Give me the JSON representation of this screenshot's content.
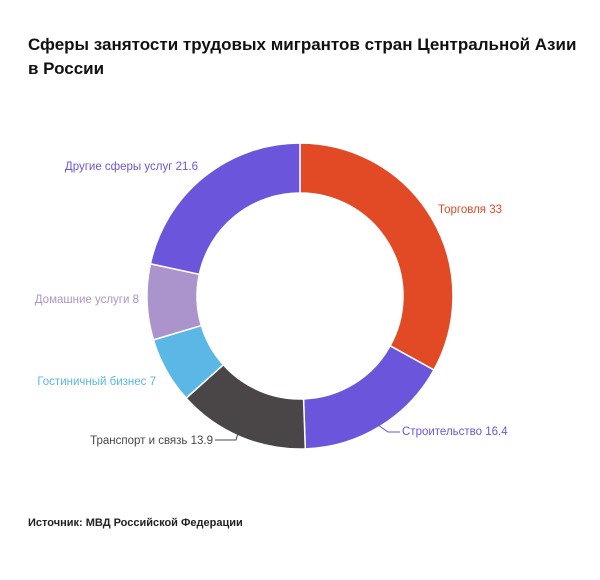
{
  "title": "Сферы занятости трудовых мигрантов стран Центральной Азии в России",
  "source": "Источник: МВД Российской Федерации",
  "chart_data": {
    "type": "pie",
    "donut": true,
    "slices": [
      {
        "label": "Торговля",
        "value": 33,
        "color": "#e24a26"
      },
      {
        "label": "Строительство",
        "value": 16.4,
        "color": "#6b56db"
      },
      {
        "label": "Транспорт и связь",
        "value": 13.9,
        "color": "#4a4648"
      },
      {
        "label": "Гостиничный бизнес",
        "value": 7,
        "color": "#5bb7e6"
      },
      {
        "label": "Домашние услуги",
        "value": 8,
        "color": "#ab94cc"
      },
      {
        "label": "Другие сферы услуг",
        "value": 21.6,
        "color": "#6b56db"
      }
    ]
  }
}
